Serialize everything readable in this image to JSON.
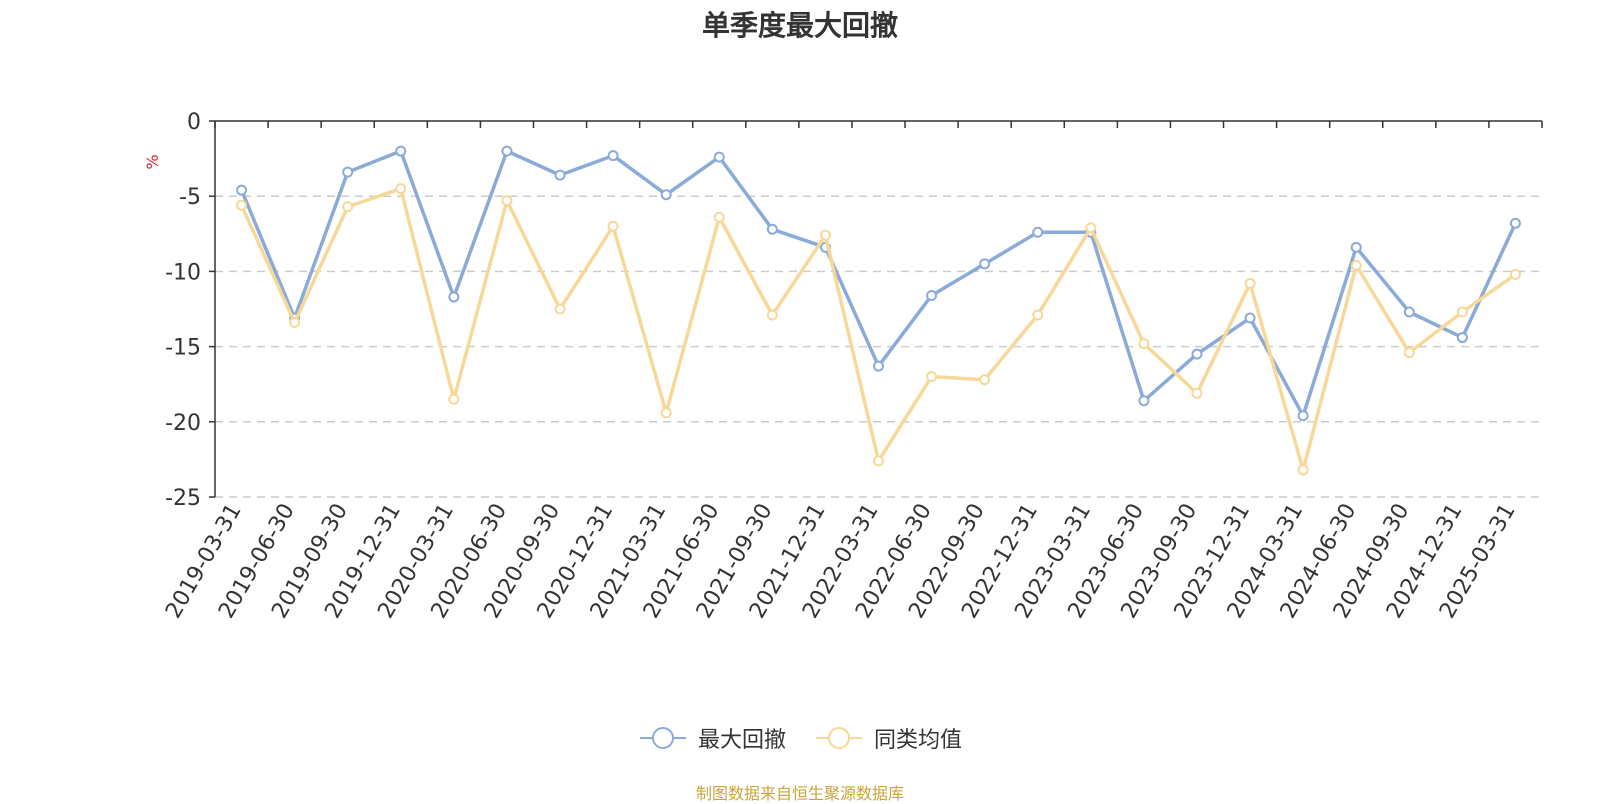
{
  "chart_data": {
    "type": "line",
    "title": "单季度最大回撤",
    "ylabel": "%",
    "ylim": [
      -25,
      0
    ],
    "yticks": [
      0,
      -5,
      -10,
      -15,
      -20,
      -25
    ],
    "grid": true,
    "legend_position": "bottom",
    "categories": [
      "2019-03-31",
      "2019-06-30",
      "2019-09-30",
      "2019-12-31",
      "2020-03-31",
      "2020-06-30",
      "2020-09-30",
      "2020-12-31",
      "2021-03-31",
      "2021-06-30",
      "2021-09-30",
      "2021-12-31",
      "2022-03-31",
      "2022-06-30",
      "2022-09-30",
      "2022-12-31",
      "2023-03-31",
      "2023-06-30",
      "2023-09-30",
      "2023-12-31",
      "2024-03-31",
      "2024-06-30",
      "2024-09-30",
      "2024-12-31",
      "2025-03-31"
    ],
    "series": [
      {
        "name": "最大回撤",
        "color": "#8aaad8",
        "values": [
          -4.6,
          -13.1,
          -3.4,
          -2.0,
          -11.7,
          -2.0,
          -3.6,
          -2.3,
          -4.9,
          -2.4,
          -7.2,
          -8.4,
          -16.3,
          -11.6,
          -9.5,
          -7.4,
          -7.4,
          -18.6,
          -15.5,
          -13.1,
          -19.6,
          -8.4,
          -12.7,
          -14.4,
          -6.8
        ]
      },
      {
        "name": "同类均值",
        "color": "#f8d898",
        "values": [
          -5.6,
          -13.4,
          -5.7,
          -4.5,
          -18.5,
          -5.3,
          -12.5,
          -7.0,
          -19.4,
          -6.4,
          -12.9,
          -7.6,
          -22.6,
          -17.0,
          -17.2,
          -12.9,
          -7.1,
          -14.8,
          -18.1,
          -10.8,
          -23.2,
          -9.6,
          -15.4,
          -12.7,
          -10.2
        ]
      }
    ]
  },
  "footer": "制图数据来自恒生聚源数据库"
}
